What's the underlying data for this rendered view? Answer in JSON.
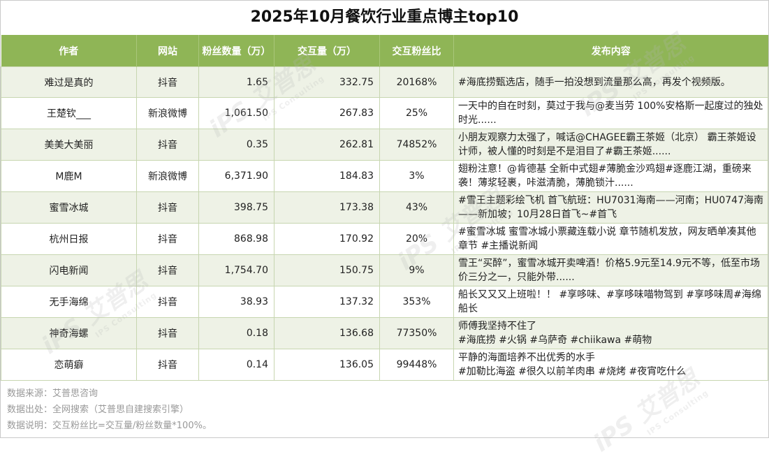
{
  "title": "2025年10月餐饮行业重点博主top10",
  "headers": [
    "作者",
    "网站",
    "粉丝数量（万）",
    "交互量（万）",
    "交互粉丝比",
    "发布内容"
  ],
  "rows": [
    {
      "author": "难过是真的",
      "site": "抖音",
      "fans": "1.65",
      "interactions": "332.75",
      "ratio": "20168%",
      "content": "#海底捞甄选店，随手一拍没想到流量那么高，再发个视频版。"
    },
    {
      "author": "王楚钦___",
      "site": "新浪微博",
      "fans": "1,061.50",
      "interactions": "267.83",
      "ratio": "25%",
      "content": "一天中的自在时刻，莫过于我与@麦当劳 100%安格斯一起度过的独处时光......"
    },
    {
      "author": "美美大美丽",
      "site": "抖音",
      "fans": "0.35",
      "interactions": "262.81",
      "ratio": "74852%",
      "content": "小朋友观察力太强了，喊话@CHAGEE霸王茶姬（北京） 霸王茶姬设计师，被人懂的时刻是不是泪目了#霸王茶姬......"
    },
    {
      "author": "M鹿M",
      "site": "新浪微博",
      "fans": "6,371.90",
      "interactions": "184.83",
      "ratio": "3%",
      "content": "翅粉注意！@肯德基 全新中式翅#薄脆金沙鸡翅#逐鹿江湖，重磅来袭！薄浆轻裹，咔滋清脆，薄脆锁汁......"
    },
    {
      "author": "蜜雪冰城",
      "site": "抖音",
      "fans": "398.75",
      "interactions": "173.38",
      "ratio": "43%",
      "content": "#雪王主题彩绘飞机 首飞航班：HU7031海南——河南；HU0747海南——新加坡；10月28日首飞~#首飞"
    },
    {
      "author": "杭州日报",
      "site": "抖音",
      "fans": "868.98",
      "interactions": "170.92",
      "ratio": "20%",
      "content": "#蜜雪冰城 蜜雪冰城小票藏连载小说 章节随机发放，网友晒单凑其他章节 #主播说新闻"
    },
    {
      "author": "闪电新闻",
      "site": "抖音",
      "fans": "1,754.70",
      "interactions": "150.75",
      "ratio": "9%",
      "content": "雪王“买醉”，蜜雪冰城开卖啤酒！价格5.9元至14.9元不等，低至市场价三分之一，只能外带......"
    },
    {
      "author": "无手海绵",
      "site": "抖音",
      "fans": "38.93",
      "interactions": "137.32",
      "ratio": "353%",
      "content": "船长又又又上班啦！！ #享哆味、#享哆味喵物驾到 #享哆味周#海绵船长"
    },
    {
      "author": "神奇海螺",
      "site": "抖音",
      "fans": "0.18",
      "interactions": "136.68",
      "ratio": "77350%",
      "content": "师傅我坚持不住了\n#海底捞 #火锅 #乌萨奇 #chiikawa #萌物"
    },
    {
      "author": "恋萌癖",
      "site": "抖音",
      "fans": "0.14",
      "interactions": "136.05",
      "ratio": "99448%",
      "content": "平静的海面培养不出优秀的水手\n#加勒比海盗 #很久以前羊肉串 #烧烤 #夜宵吃什么"
    }
  ],
  "notes": {
    "source": "数据来源：艾普思咨询",
    "origin": "数据出处：全网搜索（艾普思自建搜索引擎）",
    "explain": "数据说明：交互粉丝比=交互量/粉丝数量*100%。"
  },
  "watermark": {
    "logo": "iPS 艾普思",
    "sub": "IPS Consulting"
  },
  "colors": {
    "header": "#8fb556",
    "alt_row": "#eef2e6"
  }
}
